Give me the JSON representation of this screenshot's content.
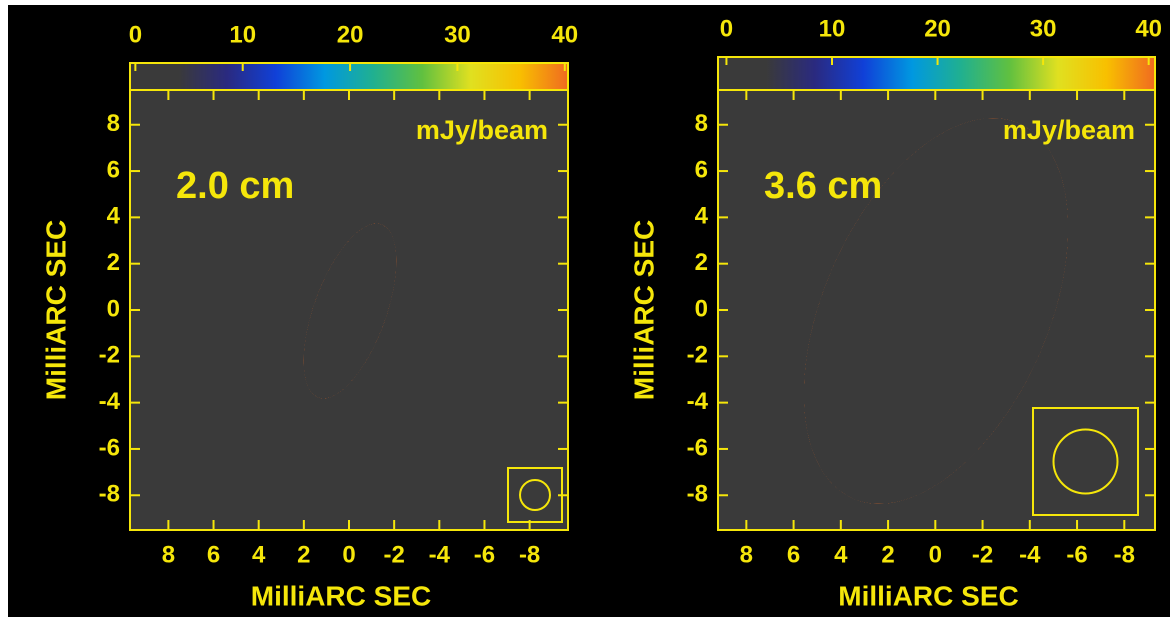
{
  "chart_data": [
    {
      "type": "heatmap",
      "annotation": "2.0 cm",
      "units": "mJy/beam",
      "xlabel": "MilliARC SEC",
      "ylabel": "MilliARC SEC",
      "xlim": [
        9.7,
        -9.7
      ],
      "ylim": [
        -9.5,
        9.5
      ],
      "xticks": [
        8,
        6,
        4,
        2,
        0,
        -2,
        -4,
        -6,
        -8
      ],
      "yticks": [
        8,
        6,
        4,
        2,
        0,
        -2,
        -4,
        -6,
        -8
      ],
      "zlim": [
        -0.5,
        40.3
      ],
      "zticks": [
        0,
        10,
        20,
        30,
        40
      ],
      "color": "#f5e60a",
      "colormap": [
        "#3a3a3a",
        "#3a3a3a",
        "#2a2a80",
        "#1040d8",
        "#0098e0",
        "#20b090",
        "#60c040",
        "#e0e020",
        "#f8c000",
        "#f06a20"
      ]
    },
    {
      "type": "heatmap",
      "annotation": "3.6 cm",
      "units": "mJy/beam",
      "xlabel": "MilliARC SEC",
      "ylabel": "MilliARC SEC",
      "xlim": [
        9.2,
        -9.3
      ],
      "ylim": [
        -9.5,
        9.5
      ],
      "xticks": [
        8,
        6,
        4,
        2,
        0,
        -2,
        -4,
        -6,
        -8
      ],
      "yticks": [
        8,
        6,
        4,
        2,
        0,
        -2,
        -4,
        -6,
        -8
      ],
      "zlim": [
        -0.8,
        40.6
      ],
      "zticks": [
        0,
        10,
        20,
        30,
        40
      ],
      "color": "#f5e60a",
      "colormap": [
        "#3a3a3a",
        "#3a3a3a",
        "#2a2a80",
        "#1040d8",
        "#0098e0",
        "#20b090",
        "#60c040",
        "#e0e020",
        "#f8c000",
        "#f06a20"
      ]
    }
  ]
}
